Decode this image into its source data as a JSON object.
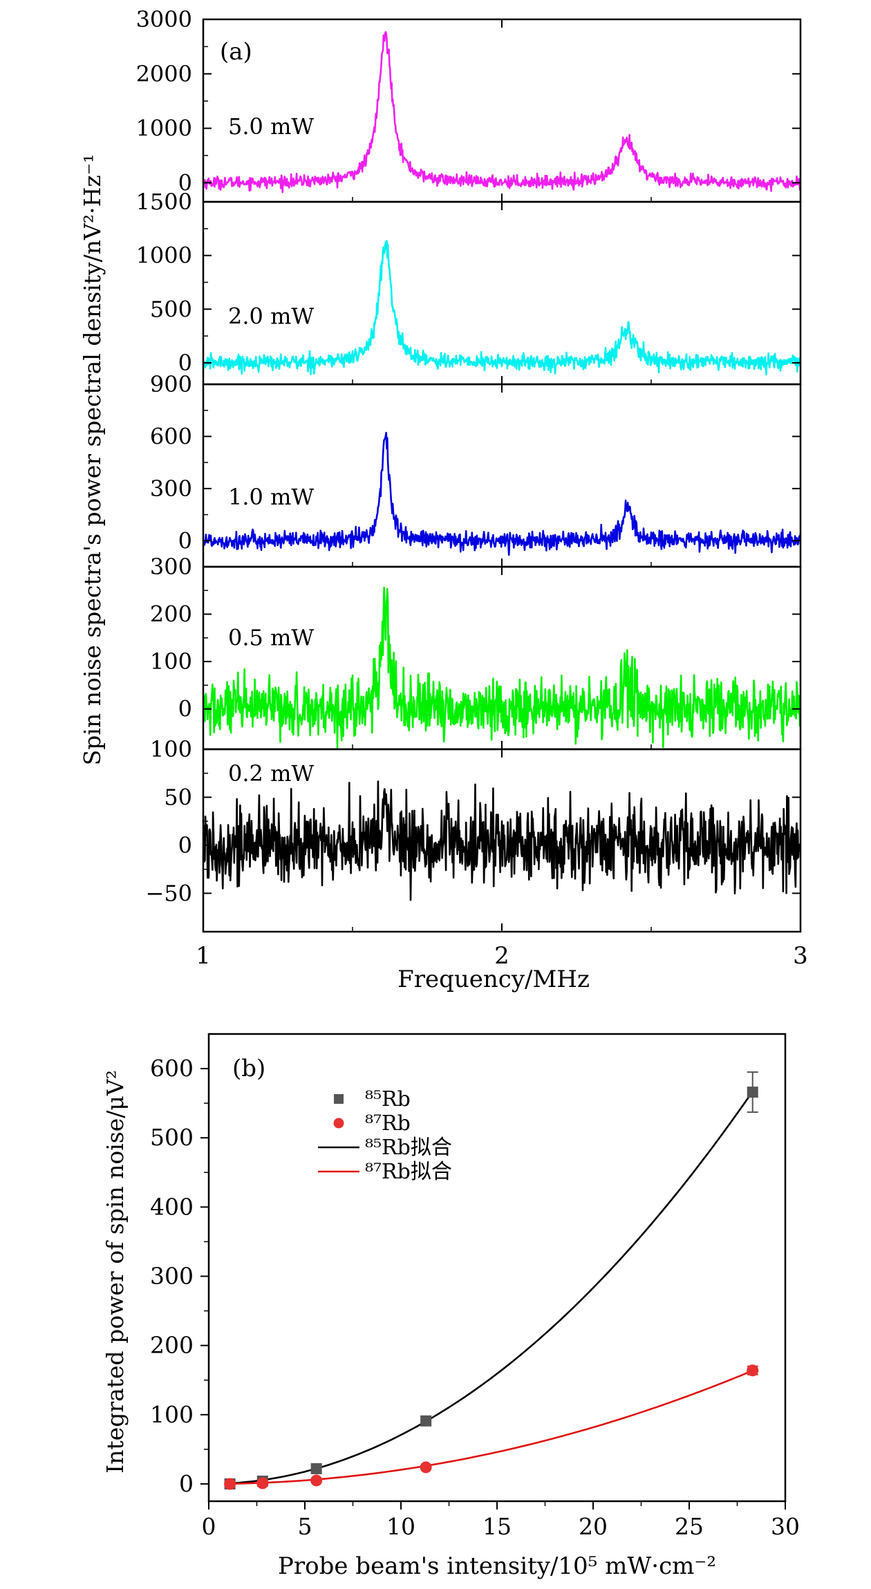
{
  "chart_data": [
    {
      "panel_label": "(a)",
      "type": "line",
      "xlabel": "Frequency/MHz",
      "ylabel": "Spin noise spectra's power spectral density/nV²·Hz⁻¹",
      "x_ticks": [
        "1",
        "2",
        "3"
      ],
      "xlim": [
        1,
        3
      ],
      "subplots": [
        {
          "name": "5.0 mW",
          "color": "#f020f0",
          "ylim": [
            -350,
            3000
          ],
          "y_ticks": [
            "0",
            "1000",
            "2000",
            "3000"
          ],
          "noise_sd": 55,
          "peaks": [
            {
              "x": 1.61,
              "amp": 2700,
              "width": 0.028
            },
            {
              "x": 2.42,
              "amp": 750,
              "width": 0.035
            }
          ]
        },
        {
          "name": "2.0 mW",
          "color": "#00f0f0",
          "ylim": [
            -200,
            1500
          ],
          "y_ticks": [
            "0",
            "500",
            "1000",
            "1500"
          ],
          "noise_sd": 35,
          "peaks": [
            {
              "x": 1.61,
              "amp": 1100,
              "width": 0.025
            },
            {
              "x": 2.42,
              "amp": 310,
              "width": 0.03
            }
          ]
        },
        {
          "name": "1.0 mW",
          "color": "#0000e0",
          "ylim": [
            -150,
            900
          ],
          "y_ticks": [
            "0",
            "300",
            "600",
            "900"
          ],
          "noise_sd": 25,
          "peaks": [
            {
              "x": 1.61,
              "amp": 630,
              "width": 0.015
            },
            {
              "x": 2.42,
              "amp": 190,
              "width": 0.02
            }
          ]
        },
        {
          "name": "0.5 mW",
          "color": "#00f000",
          "ylim": [
            -85,
            300
          ],
          "y_ticks": [
            "0",
            "100",
            "200",
            "300"
          ],
          "noise_sd": 30,
          "peaks": [
            {
              "x": 1.61,
              "amp": 230,
              "width": 0.013
            },
            {
              "x": 2.42,
              "amp": 60,
              "width": 0.02
            }
          ]
        },
        {
          "name": "0.2 mW",
          "color": "#000000",
          "ylim": [
            -90,
            100
          ],
          "y_ticks": [
            "−50",
            "0",
            "50",
            "100"
          ],
          "noise_sd": 20,
          "peaks": [
            {
              "x": 1.61,
              "amp": 45,
              "width": 0.013
            },
            {
              "x": 2.42,
              "amp": 15,
              "width": 0.02
            }
          ]
        }
      ]
    },
    {
      "panel_label": "(b)",
      "type": "scatter",
      "xlabel": "Probe beam's intensity/10⁵ mW·cm⁻²",
      "ylabel": "Integrated power of spin noise/μV²",
      "xlim": [
        0,
        30
      ],
      "ylim": [
        -25,
        650
      ],
      "x_ticks": [
        0,
        5,
        10,
        15,
        20,
        25,
        30
      ],
      "y_ticks": [
        0,
        100,
        200,
        300,
        400,
        500,
        600
      ],
      "series": [
        {
          "name": "⁸⁵Rb",
          "marker": "square",
          "color": "#555555",
          "x": [
            1.1,
            2.8,
            5.6,
            11.3,
            28.3
          ],
          "y": [
            0,
            4,
            22,
            91,
            566
          ],
          "yerr": [
            0,
            0,
            0,
            0,
            29
          ]
        },
        {
          "name": "⁸⁷Rb",
          "marker": "circle",
          "color": "#e83030",
          "x": [
            1.1,
            2.8,
            5.6,
            11.3,
            28.3
          ],
          "y": [
            0,
            1,
            5,
            24,
            164
          ],
          "yerr": [
            0,
            0,
            0,
            0,
            6
          ]
        },
        {
          "name": "⁸⁵Rb拟合",
          "marker": "line",
          "color": "#000000",
          "coeff": 0.7079,
          "exponent": 2
        },
        {
          "name": "⁸⁷Rb拟合",
          "marker": "line",
          "color": "#e01010",
          "coeff": 0.2043,
          "exponent": 2
        }
      ]
    }
  ]
}
